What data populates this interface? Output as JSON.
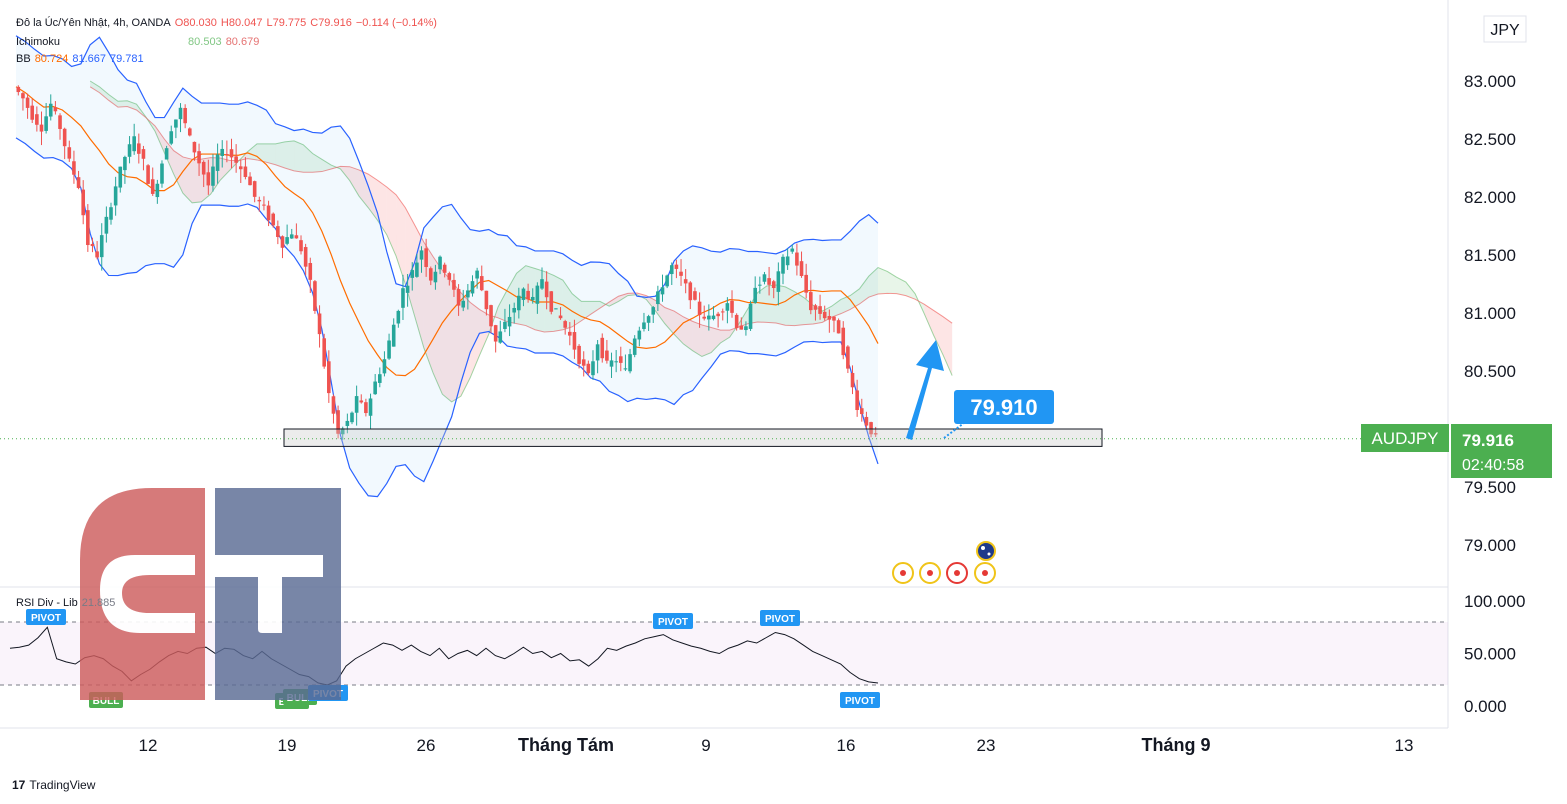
{
  "header": {
    "symbol_line": "Đô la Úc/Yên Nhật, 4h, OANDA",
    "open": "O80.030",
    "high": "H80.047",
    "low": "L79.775",
    "close": "C79.916",
    "change": "−0.114 (−0.14%)",
    "ichimoku_label": "Ichimoku",
    "ichimoku_v1": "80.503",
    "ichimoku_v2": "80.679",
    "bb_label": "BB",
    "bb_v1": "80.724",
    "bb_v2": "81.667",
    "bb_v3": "79.781",
    "rsi_label": "RSI Div - Lib",
    "rsi_value": "21.885"
  },
  "currency": "JPY",
  "ticker": "AUDJPY",
  "last_price": "79.916",
  "countdown": "02:40:58",
  "annotation_price": "79.910",
  "branding": "TradingView",
  "colors": {
    "up": "#26a69a",
    "down": "#ef5350",
    "bb_band": "#2962ff",
    "bb_basis": "#ff6d00",
    "accent": "#2196f3",
    "price_tag": "#4caf50"
  },
  "chart_data": {
    "type": "candlestick",
    "y_axis": {
      "min": 78.5,
      "max": 83.5,
      "ticks": [
        "79.000",
        "79.500",
        "80.500",
        "81.000",
        "81.500",
        "82.000",
        "82.500",
        "83.000"
      ]
    },
    "x_ticks": [
      "12",
      "19",
      "26",
      "Tháng Tám",
      "9",
      "16",
      "23",
      "Tháng 9",
      "13"
    ],
    "close_path": [
      82.95,
      82.85,
      82.7,
      82.6,
      82.8,
      82.6,
      82.3,
      82.1,
      81.6,
      81.5,
      81.8,
      82.1,
      82.35,
      82.5,
      82.3,
      82.0,
      82.3,
      82.6,
      82.75,
      82.5,
      82.3,
      82.1,
      82.35,
      82.4,
      82.3,
      82.2,
      82.0,
      81.9,
      81.75,
      81.6,
      81.7,
      81.55,
      81.25,
      80.8,
      80.3,
      79.95,
      80.05,
      80.25,
      80.15,
      80.4,
      80.6,
      80.9,
      81.2,
      81.35,
      81.55,
      81.3,
      81.45,
      81.3,
      81.05,
      81.2,
      81.35,
      81.05,
      80.75,
      80.9,
      81.05,
      81.2,
      81.1,
      81.3,
      81.05,
      80.95,
      80.8,
      80.6,
      80.45,
      80.75,
      80.55,
      80.6,
      80.5,
      80.8,
      80.95,
      81.05,
      81.25,
      81.4,
      81.3,
      81.15,
      81.0,
      80.95,
      81.0,
      81.1,
      80.9,
      80.85,
      81.25,
      81.3,
      81.2,
      81.45,
      81.55,
      81.3,
      81.05,
      81.0,
      80.95,
      80.85,
      80.5,
      80.2,
      80.05,
      79.916
    ],
    "levels": {
      "support_zone": [
        79.85,
        80.0
      ],
      "annotation": 79.91,
      "last": 79.916
    },
    "rsi": {
      "range": [
        0,
        100
      ],
      "ticks": [
        "100.000",
        "50.000",
        "0.000"
      ],
      "bands": [
        80,
        20
      ],
      "values": [
        55,
        56,
        58,
        65,
        75,
        45,
        42,
        40,
        46,
        48,
        45,
        38,
        33,
        24,
        30,
        35,
        42,
        48,
        52,
        50,
        55,
        56,
        50,
        55,
        54,
        48,
        45,
        52,
        45,
        40,
        35,
        30,
        28,
        22,
        20,
        24,
        38,
        45,
        50,
        55,
        60,
        58,
        53,
        58,
        52,
        48,
        55,
        45,
        50,
        53,
        48,
        55,
        48,
        45,
        50,
        56,
        50,
        52,
        46,
        50,
        43,
        44,
        38,
        45,
        55,
        53,
        57,
        60,
        64,
        66,
        68,
        63,
        60,
        57,
        55,
        52,
        50,
        55,
        58,
        62,
        60,
        65,
        70,
        68,
        64,
        58,
        52,
        48,
        44,
        40,
        32,
        26,
        23,
        21.885
      ],
      "markers": [
        {
          "label": "PIVOT"
        },
        {
          "label": "BULL"
        },
        {
          "label": "BULL"
        },
        {
          "label": "BULL"
        },
        {
          "label": "PIVOT"
        },
        {
          "label": "PIVOT"
        },
        {
          "label": "PIVOT"
        },
        {
          "label": "PIVOT"
        }
      ]
    }
  }
}
